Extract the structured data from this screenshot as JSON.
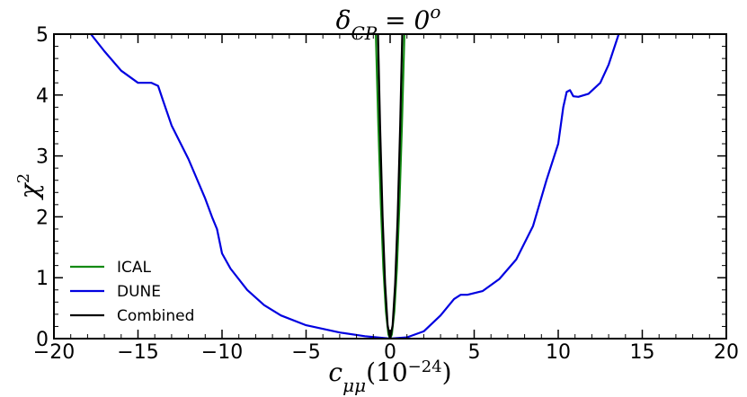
{
  "chart_data": {
    "type": "line",
    "title": "δ_CP = 0°",
    "title_parts": {
      "main": "δ",
      "sub": "CP",
      "rest": " = 0",
      "sup": "o"
    },
    "xlabel_parts": {
      "main": "c",
      "sub": "μμ",
      "rest": "(10",
      "sup": "−24",
      "close": ")"
    },
    "ylabel_parts": {
      "main": "χ",
      "sup": "2"
    },
    "xlim": [
      -20,
      20
    ],
    "ylim": [
      0,
      5
    ],
    "x_ticks": [
      -20,
      -15,
      -10,
      -5,
      0,
      5,
      10,
      15,
      20
    ],
    "x_tick_labels": [
      "−20",
      "−15",
      "−10",
      "−5",
      "0",
      "5",
      "10",
      "15",
      "20"
    ],
    "y_ticks": [
      0,
      1,
      2,
      3,
      4,
      5
    ],
    "y_tick_labels": [
      "0",
      "1",
      "2",
      "3",
      "4",
      "5"
    ],
    "grid": false,
    "legend_position": "lower-left",
    "series": [
      {
        "name": "ICAL",
        "color": "#138a13",
        "points": [
          [
            -0.85,
            5.0
          ],
          [
            -0.7,
            3.5
          ],
          [
            -0.55,
            2.2
          ],
          [
            -0.4,
            1.15
          ],
          [
            -0.25,
            0.45
          ],
          [
            -0.1,
            0.07
          ],
          [
            0.0,
            0.0
          ],
          [
            0.1,
            0.07
          ],
          [
            0.25,
            0.45
          ],
          [
            0.4,
            1.15
          ],
          [
            0.55,
            2.2
          ],
          [
            0.7,
            3.5
          ],
          [
            0.85,
            5.0
          ]
        ]
      },
      {
        "name": "DUNE",
        "color": "#0000e0",
        "points": [
          [
            -17.8,
            5.0
          ],
          [
            -17.0,
            4.72
          ],
          [
            -16.0,
            4.4
          ],
          [
            -15.0,
            4.2
          ],
          [
            -14.2,
            4.2
          ],
          [
            -13.8,
            4.15
          ],
          [
            -13.5,
            3.9
          ],
          [
            -13.0,
            3.5
          ],
          [
            -12.0,
            2.95
          ],
          [
            -11.0,
            2.3
          ],
          [
            -10.6,
            2.0
          ],
          [
            -10.3,
            1.8
          ],
          [
            -10.0,
            1.4
          ],
          [
            -9.5,
            1.15
          ],
          [
            -8.5,
            0.8
          ],
          [
            -7.5,
            0.55
          ],
          [
            -6.5,
            0.38
          ],
          [
            -5.0,
            0.22
          ],
          [
            -3.0,
            0.1
          ],
          [
            -1.5,
            0.04
          ],
          [
            0.0,
            0.0
          ],
          [
            1.0,
            0.02
          ],
          [
            2.0,
            0.12
          ],
          [
            3.0,
            0.38
          ],
          [
            3.8,
            0.65
          ],
          [
            4.2,
            0.72
          ],
          [
            4.6,
            0.72
          ],
          [
            5.5,
            0.78
          ],
          [
            6.5,
            0.98
          ],
          [
            7.5,
            1.3
          ],
          [
            8.5,
            1.85
          ],
          [
            9.3,
            2.6
          ],
          [
            10.0,
            3.2
          ],
          [
            10.3,
            3.8
          ],
          [
            10.5,
            4.05
          ],
          [
            10.7,
            4.08
          ],
          [
            10.9,
            3.98
          ],
          [
            11.2,
            3.97
          ],
          [
            11.8,
            4.02
          ],
          [
            12.5,
            4.2
          ],
          [
            13.0,
            4.5
          ],
          [
            13.6,
            5.0
          ]
        ]
      },
      {
        "name": "Combined",
        "color": "#000000",
        "points": [
          [
            -0.72,
            5.0
          ],
          [
            -0.6,
            3.5
          ],
          [
            -0.45,
            2.0
          ],
          [
            -0.3,
            0.9
          ],
          [
            -0.15,
            0.22
          ],
          [
            0.0,
            0.0
          ],
          [
            0.15,
            0.22
          ],
          [
            0.3,
            0.9
          ],
          [
            0.45,
            2.0
          ],
          [
            0.6,
            3.5
          ],
          [
            0.72,
            5.0
          ]
        ]
      }
    ]
  }
}
